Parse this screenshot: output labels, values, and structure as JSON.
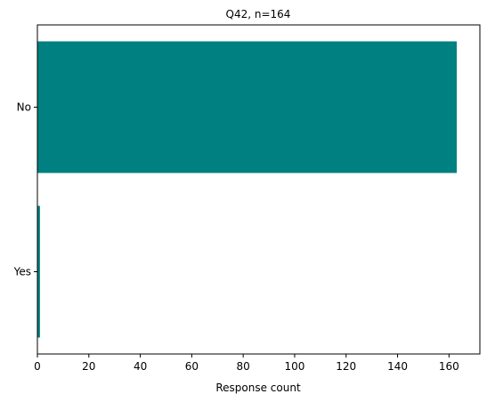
{
  "chart_data": {
    "type": "bar",
    "orientation": "horizontal",
    "title": "Q42, n=164",
    "xlabel": "Response count",
    "ylabel": "",
    "categories": [
      "No",
      "Yes"
    ],
    "values": [
      163,
      1
    ],
    "xlim": [
      0,
      172
    ],
    "xticks": [
      0,
      20,
      40,
      60,
      80,
      100,
      120,
      140,
      160
    ],
    "bar_color": "#008080",
    "grid": false,
    "legend": "none"
  }
}
